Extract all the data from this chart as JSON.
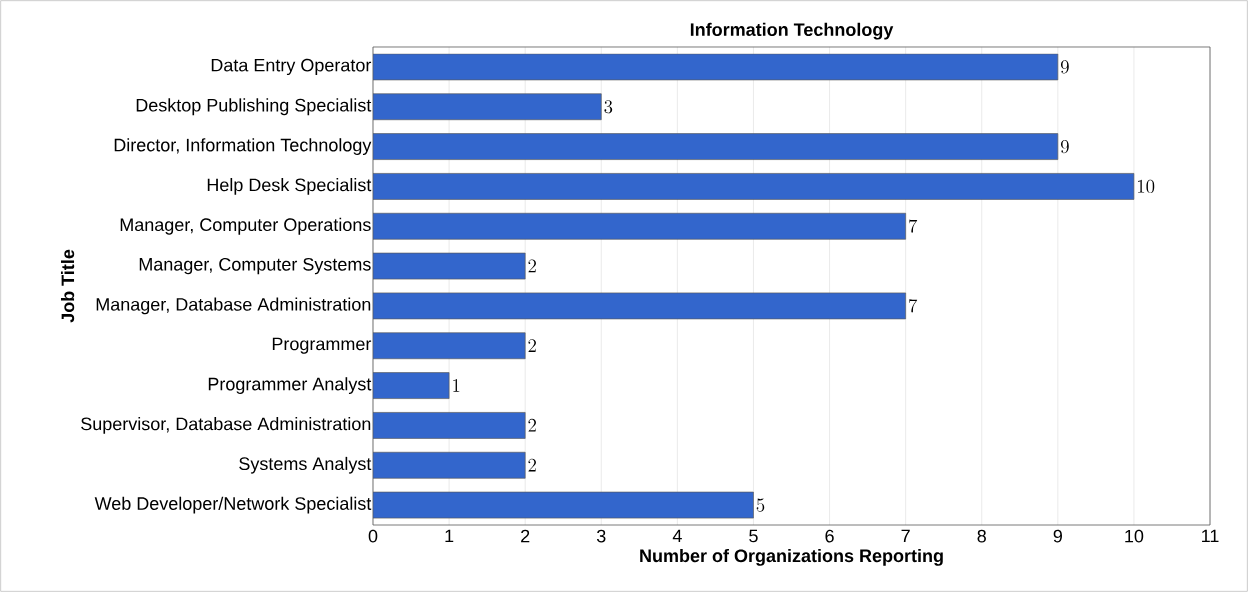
{
  "chart_data": {
    "type": "bar",
    "orientation": "horizontal",
    "title": "Information Technology",
    "xlabel": "Number of Organizations Reporting",
    "ylabel": "Job Title",
    "categories": [
      "Data Entry Operator",
      "Desktop Publishing Specialist",
      "Director, Information Technology",
      "Help Desk Specialist",
      "Manager, Computer Operations",
      "Manager, Computer Systems",
      "Manager, Database Administration",
      "Programmer",
      "Programmer Analyst",
      "Supervisor, Database Administration",
      "Systems Analyst",
      "Web Developer/Network Specialist"
    ],
    "values": [
      9,
      3,
      9,
      10,
      7,
      2,
      7,
      2,
      1,
      2,
      2,
      5
    ],
    "color": "#3366cc",
    "xlim": [
      0,
      11
    ],
    "xticks": [
      0,
      1,
      2,
      3,
      4,
      5,
      6,
      7,
      8,
      9,
      10,
      11
    ],
    "grid": "x",
    "data_labels": true
  }
}
